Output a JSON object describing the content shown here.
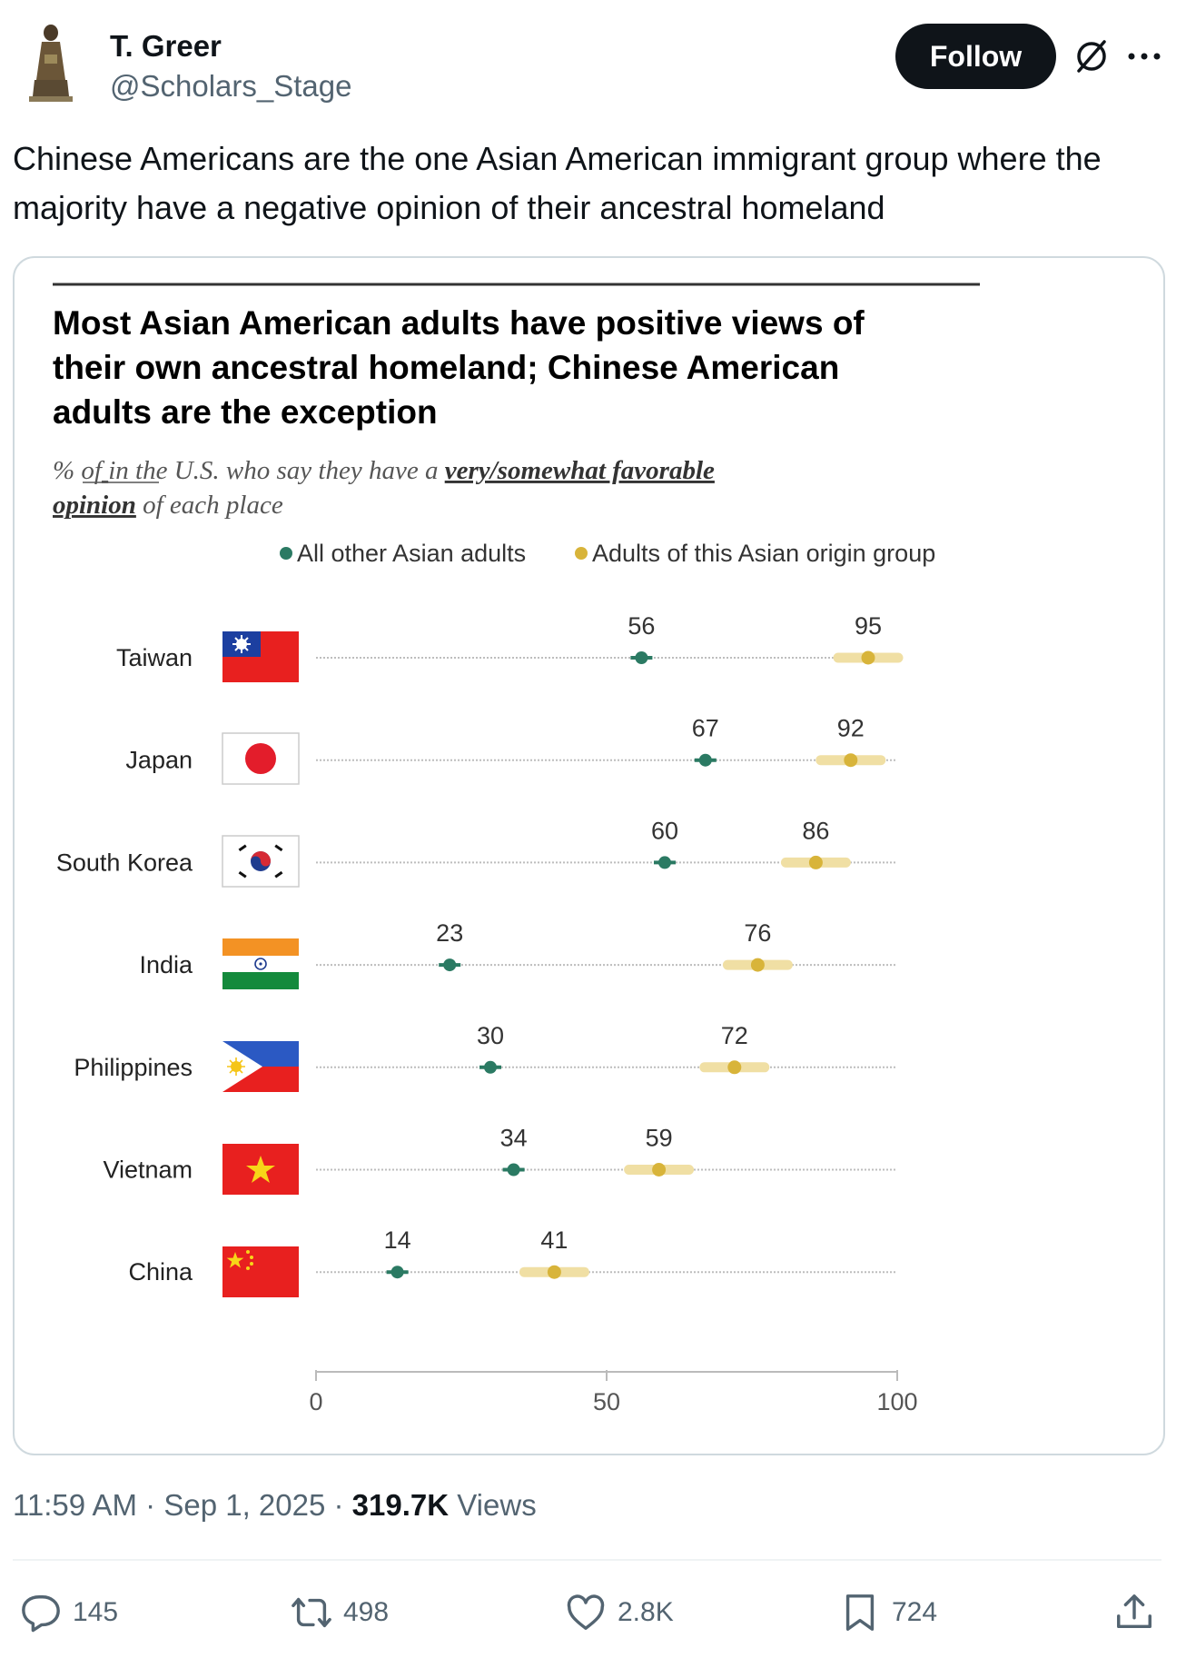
{
  "author": {
    "name": "T. Greer",
    "handle": "@Scholars_Stage"
  },
  "follow_label": "Follow",
  "tweet_text": "Chinese Americans are the one Asian American immigrant group where the majority have a negative opinion of their ancestral homeland",
  "chart_data": {
    "type": "dot",
    "title": "Most Asian American adults have positive views of their own ancestral homeland; Chinese American adults are the exception",
    "title_lines": [
      "Most Asian American adults have positive views of",
      "their own ancestral homeland; Chinese American",
      "adults are the exception"
    ],
    "subtitle_parts": {
      "pre": "% of",
      "mid": " in the U.S. who say they have a ",
      "emph1": "very/somewhat favorable",
      "emph2": "opinion",
      "post": " of each place"
    },
    "legend": [
      "All other Asian adults",
      "Adults of this Asian origin group"
    ],
    "colors": {
      "other": "#2b7a63",
      "origin": "#d8b43a",
      "origin_band": "#f0dfa4"
    },
    "categories": [
      "Taiwan",
      "Japan",
      "South Korea",
      "India",
      "Philippines",
      "Vietnam",
      "China"
    ],
    "series": [
      {
        "name": "All other Asian adults",
        "values": [
          56,
          67,
          60,
          23,
          30,
          34,
          14
        ]
      },
      {
        "name": "Adults of this Asian origin group",
        "values": [
          95,
          92,
          86,
          76,
          72,
          59,
          41
        ]
      }
    ],
    "xlim": [
      0,
      100
    ],
    "xticks": [
      0,
      50,
      100
    ]
  },
  "meta": {
    "time": "11:59 AM",
    "date": "Sep 1, 2025",
    "views_count": "319.7K",
    "views_label": "Views",
    "sep": "·"
  },
  "actions": {
    "replies": "145",
    "reposts": "498",
    "likes": "2.8K",
    "bookmarks": "724"
  }
}
